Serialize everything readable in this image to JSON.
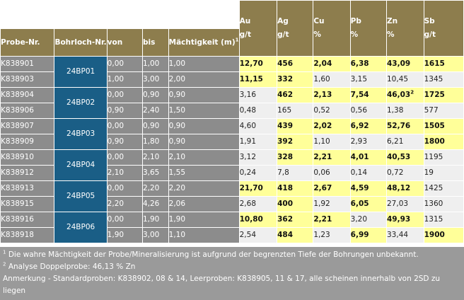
{
  "header": {
    "probe": "Probe-Nr.",
    "bohrloch": "Bohrloch-Nr.",
    "von": "von",
    "bis": "bis",
    "maechtigkeit": "Mächtigkeit (m)",
    "maechtigkeit_sup": "1",
    "elements": [
      {
        "symbol": "Au",
        "unit": "g/t"
      },
      {
        "symbol": "Ag",
        "unit": "g/t"
      },
      {
        "symbol": "Cu",
        "unit": "%"
      },
      {
        "symbol": "Pb",
        "unit": "%"
      },
      {
        "symbol": "Zn",
        "unit": "%"
      },
      {
        "symbol": "Sb",
        "unit": "g/t"
      }
    ]
  },
  "rows": [
    {
      "probe": "K838901",
      "bohrloch": "24BP01",
      "von": "0,00",
      "bis": "1,00",
      "m": "1,00",
      "vals": [
        "12,70",
        "456",
        "2,04",
        "6,38",
        "43,09",
        "1615"
      ],
      "bold": [
        1,
        1,
        1,
        1,
        1,
        1
      ],
      "hl": [
        1,
        1,
        1,
        1,
        1,
        1
      ]
    },
    {
      "probe": "K838903",
      "bohrloch": "",
      "von": "1,00",
      "bis": "3,00",
      "m": "2,00",
      "vals": [
        "11,15",
        "332",
        "1,60",
        "3,15",
        "10,45",
        "1345"
      ],
      "bold": [
        1,
        1,
        0,
        0,
        0,
        0
      ],
      "hl": [
        1,
        1,
        0,
        0,
        0,
        0
      ]
    },
    {
      "probe": "K838904",
      "bohrloch": "24BP02",
      "von": "0,00",
      "bis": "0,90",
      "m": "0,90",
      "vals": [
        "3,16",
        "462",
        "2,13",
        "7,54",
        "46,03",
        "1725"
      ],
      "bold": [
        0,
        1,
        1,
        1,
        1,
        1
      ],
      "hl": [
        0,
        1,
        1,
        1,
        1,
        1
      ],
      "zn_sup": "2"
    },
    {
      "probe": "K838906",
      "bohrloch": "",
      "von": "0,90",
      "bis": "2,40",
      "m": "1,50",
      "vals": [
        "0,48",
        "165",
        "0,52",
        "0,56",
        "1,38",
        "577"
      ],
      "bold": [
        0,
        0,
        0,
        0,
        0,
        0
      ],
      "hl": [
        0,
        0,
        0,
        0,
        0,
        0
      ]
    },
    {
      "probe": "K838907",
      "bohrloch": "24BP03",
      "von": "0,00",
      "bis": "0,90",
      "m": "0,90",
      "vals": [
        "4,60",
        "439",
        "2,02",
        "6,92",
        "52,76",
        "1505"
      ],
      "bold": [
        0,
        1,
        1,
        1,
        1,
        1
      ],
      "hl": [
        0,
        1,
        1,
        1,
        1,
        1
      ]
    },
    {
      "probe": "K838909",
      "bohrloch": "",
      "von": "0,90",
      "bis": "1,80",
      "m": "0,90",
      "vals": [
        "1,91",
        "392",
        "1,10",
        "2,93",
        "6,21",
        "1800"
      ],
      "bold": [
        0,
        1,
        0,
        0,
        0,
        1
      ],
      "hl": [
        0,
        1,
        0,
        0,
        0,
        1
      ]
    },
    {
      "probe": "K838910",
      "bohrloch": "24BP04",
      "von": "0,00",
      "bis": "2,10",
      "m": "2,10",
      "vals": [
        "3,12",
        "328",
        "2,21",
        "4,01",
        "40,53",
        "1195"
      ],
      "bold": [
        0,
        1,
        1,
        1,
        1,
        0
      ],
      "hl": [
        0,
        1,
        1,
        1,
        1,
        0
      ]
    },
    {
      "probe": "K838912",
      "bohrloch": "",
      "von": "2,10",
      "bis": "3,65",
      "m": "1,55",
      "vals": [
        "0,24",
        "7,8",
        "0,06",
        "0,14",
        "0,72",
        "19"
      ],
      "bold": [
        0,
        0,
        0,
        0,
        0,
        0
      ],
      "hl": [
        0,
        0,
        0,
        0,
        0,
        0
      ]
    },
    {
      "probe": "K838913",
      "bohrloch": "24BP05",
      "von": "0,00",
      "bis": "2,20",
      "m": "2,20",
      "vals": [
        "21,70",
        "418",
        "2,67",
        "4,59",
        "48,12",
        "1425"
      ],
      "bold": [
        1,
        1,
        1,
        1,
        1,
        0
      ],
      "hl": [
        1,
        1,
        1,
        1,
        1,
        0
      ]
    },
    {
      "probe": "K838915",
      "bohrloch": "",
      "von": "2,20",
      "bis": "4,26",
      "m": "2,06",
      "vals": [
        "2,68",
        "400",
        "1,92",
        "6,05",
        "27,03",
        "1360"
      ],
      "bold": [
        0,
        1,
        0,
        1,
        0,
        0
      ],
      "hl": [
        0,
        1,
        0,
        1,
        0,
        0
      ]
    },
    {
      "probe": "K838916",
      "bohrloch": "24BP06",
      "von": "0,00",
      "bis": "1,90",
      "m": "1,90",
      "vals": [
        "10,80",
        "362",
        "2,21",
        "3,20",
        "49,93",
        "1315"
      ],
      "bold": [
        1,
        1,
        1,
        0,
        1,
        0
      ],
      "hl": [
        1,
        1,
        1,
        0,
        1,
        0
      ]
    },
    {
      "probe": "K838918",
      "bohrloch": "",
      "von": "1,90",
      "bis": "3,00",
      "m": "1,10",
      "vals": [
        "2,54",
        "484",
        "1,23",
        "6,99",
        "33,44",
        "1900"
      ],
      "bold": [
        0,
        1,
        0,
        1,
        0,
        1
      ],
      "hl": [
        0,
        1,
        0,
        1,
        0,
        1
      ]
    }
  ],
  "notes": {
    "n1_sup": "1",
    "n1": "Die wahre Mächtigkeit der Probe/Mineralisierung ist aufgrund der begrenzten Tiefe der Bohrungen unbekannt.",
    "n2_sup": "2",
    "n2": "Analyse Doppelprobe: 46,13 % Zn",
    "n3": "Anmerkung - Standardproben: K838902, 08 & 14, Leerproben: K838905, 11 & 17, alle scheinen innerhalb von 2SD zu liegen"
  },
  "colors": {
    "header_gold": "#8d7d4d",
    "label_grey": "#8c8c8c",
    "bore_blue": "#1a5e86",
    "highlight_yellow": "#ffff99",
    "plain_cell": "#efefef"
  }
}
